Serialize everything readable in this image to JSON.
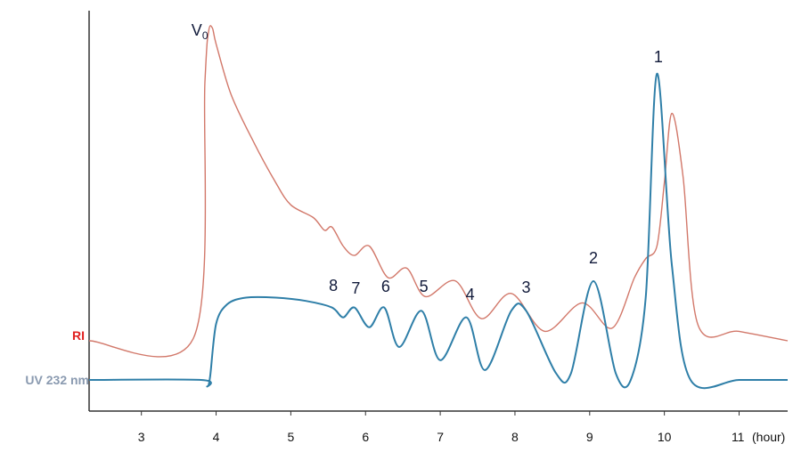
{
  "chart_data": {
    "type": "line",
    "title": "",
    "xlabel": "",
    "ylabel": "",
    "x_unit": "(hour)",
    "xlim": [
      2.3,
      11.65
    ],
    "xticks": [
      3,
      4,
      5,
      6,
      7,
      8,
      9,
      10,
      11
    ],
    "grid": false,
    "colors": {
      "ri": "#d2786a",
      "uv": "#2f7fa8",
      "ri_label": "#e02020",
      "uv_label": "#8a9ab0",
      "axis": "#333333"
    },
    "series": [
      {
        "name": "RI",
        "label_color": "#e02020",
        "x": [
          2.3,
          3.7,
          3.85,
          3.9,
          3.95,
          4.0,
          4.2,
          4.5,
          4.8,
          5.0,
          5.3,
          5.45,
          5.55,
          5.7,
          5.85,
          6.05,
          6.3,
          6.55,
          6.8,
          7.2,
          7.55,
          7.95,
          8.4,
          8.9,
          9.3,
          9.6,
          9.75,
          9.9,
          10.0,
          10.1,
          10.25,
          10.45,
          11.0,
          11.65
        ],
        "values": [
          0.0,
          0.01,
          0.82,
          0.98,
          0.99,
          0.94,
          0.78,
          0.63,
          0.5,
          0.43,
          0.39,
          0.35,
          0.36,
          0.3,
          0.27,
          0.3,
          0.2,
          0.23,
          0.14,
          0.19,
          0.07,
          0.15,
          0.03,
          0.12,
          0.04,
          0.2,
          0.26,
          0.3,
          0.5,
          0.72,
          0.52,
          0.05,
          0.03,
          0.0
        ]
      },
      {
        "name": "UV 232 nm",
        "label_color": "#8a9ab0",
        "x": [
          2.3,
          3.8,
          3.88,
          3.92,
          4.0,
          4.15,
          4.4,
          4.8,
          5.2,
          5.55,
          5.7,
          5.85,
          6.05,
          6.25,
          6.45,
          6.75,
          7.0,
          7.35,
          7.6,
          7.95,
          8.15,
          8.55,
          8.75,
          9.05,
          9.35,
          9.55,
          9.75,
          9.9,
          10.1,
          10.35,
          11.0,
          11.65
        ],
        "values": [
          0.0,
          0.0,
          -0.02,
          0.01,
          0.17,
          0.23,
          0.25,
          0.25,
          0.24,
          0.22,
          0.19,
          0.22,
          0.16,
          0.22,
          0.1,
          0.21,
          0.06,
          0.19,
          0.03,
          0.21,
          0.21,
          0.02,
          0.02,
          0.3,
          0.02,
          0.0,
          0.25,
          0.93,
          0.35,
          0.0,
          0.0,
          0.0
        ]
      }
    ],
    "annotations": [
      {
        "text": "V0",
        "x": 3.9
      },
      {
        "text": "1",
        "x": 9.92
      },
      {
        "text": "2",
        "x": 9.05
      },
      {
        "text": "3",
        "x": 8.15
      },
      {
        "text": "4",
        "x": 7.4
      },
      {
        "text": "5",
        "x": 6.78
      },
      {
        "text": "6",
        "x": 6.27
      },
      {
        "text": "7",
        "x": 5.87
      },
      {
        "text": "8",
        "x": 5.57
      }
    ]
  }
}
